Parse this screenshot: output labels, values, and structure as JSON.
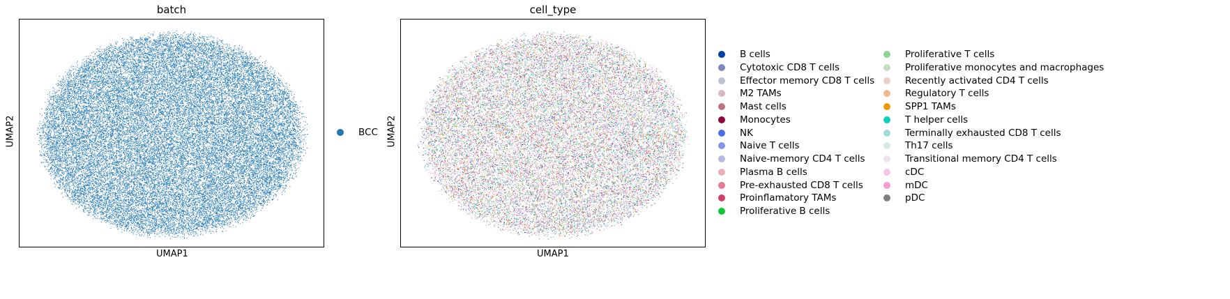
{
  "chart_data": [
    {
      "type": "scatter",
      "title": "batch",
      "xlabel": "UMAP1",
      "ylabel": "UMAP2",
      "grid": false,
      "legend_placement": "right",
      "series": [
        {
          "name": "BCC",
          "color": "#1f77b4"
        }
      ],
      "point_shape": "ellipse-cloud"
    },
    {
      "type": "scatter",
      "title": "cell_type",
      "xlabel": "UMAP1",
      "ylabel": "UMAP2",
      "grid": false,
      "legend_placement": "right",
      "series": [
        {
          "name": "B cells",
          "color": "#023fa5"
        },
        {
          "name": "Cytotoxic CD8 T cells",
          "color": "#7d87b9"
        },
        {
          "name": "Effector memory CD8 T cells",
          "color": "#bec1d4"
        },
        {
          "name": "M2 TAMs",
          "color": "#d6bcc0"
        },
        {
          "name": "Mast cells",
          "color": "#bb7784"
        },
        {
          "name": "Monocytes",
          "color": "#8e063b"
        },
        {
          "name": "NK",
          "color": "#4a6fe3"
        },
        {
          "name": "Naive T cells",
          "color": "#8595e1"
        },
        {
          "name": "Naive-memory CD4 T cells",
          "color": "#b5bbe3"
        },
        {
          "name": "Plasma B cells",
          "color": "#e6afb9"
        },
        {
          "name": "Pre-exhausted CD8 T cells",
          "color": "#e07b91"
        },
        {
          "name": "Proinflamatory TAMs",
          "color": "#d33f6a"
        },
        {
          "name": "Proliferative B cells",
          "color": "#11c638"
        },
        {
          "name": "Proliferative T cells",
          "color": "#8dd593"
        },
        {
          "name": "Proliferative monocytes and macrophages",
          "color": "#c6dec7"
        },
        {
          "name": "Recently activated CD4 T cells",
          "color": "#ead3c6"
        },
        {
          "name": "Regulatory T cells",
          "color": "#f0b98d"
        },
        {
          "name": "SPP1 TAMs",
          "color": "#ef9708"
        },
        {
          "name": "T helper cells",
          "color": "#0fcfc0"
        },
        {
          "name": "Terminally exhausted CD8 T cells",
          "color": "#9cded6"
        },
        {
          "name": "Th17 cells",
          "color": "#d5eae7"
        },
        {
          "name": "Transitional memory CD4 T cells",
          "color": "#f3e1eb"
        },
        {
          "name": "cDC",
          "color": "#f6c4e1"
        },
        {
          "name": "mDC",
          "color": "#f79cd4"
        },
        {
          "name": "pDC",
          "color": "#7f7f7f"
        }
      ],
      "point_shape": "ellipse-cloud"
    }
  ]
}
